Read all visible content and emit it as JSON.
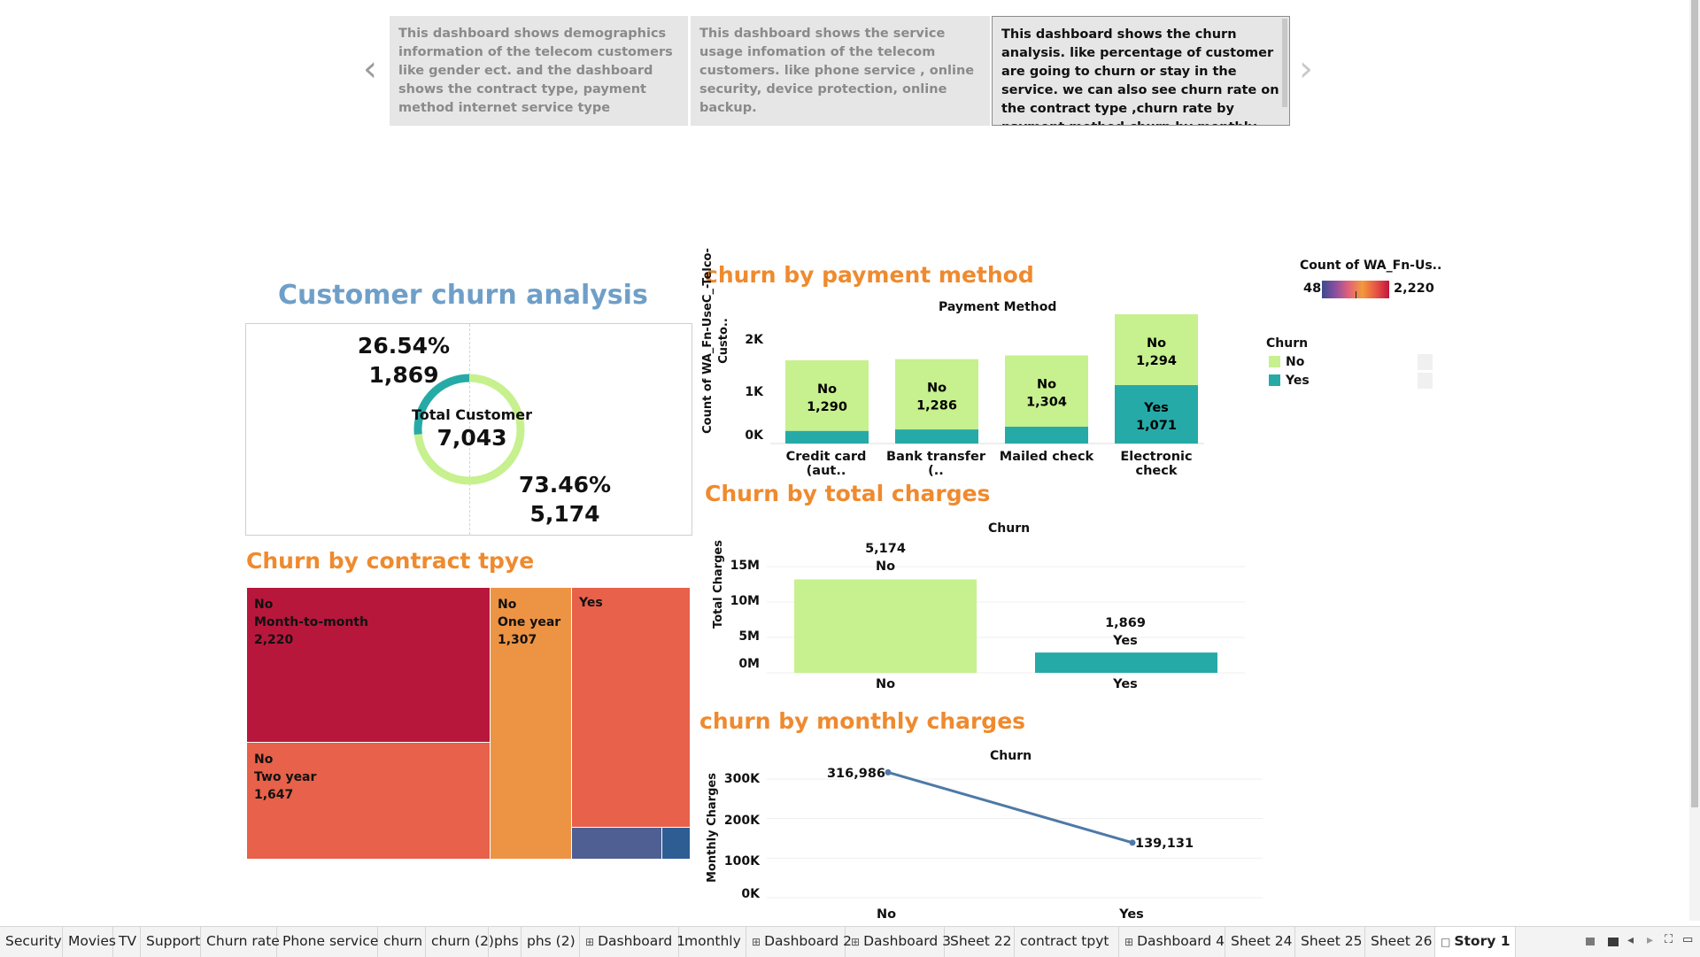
{
  "story": {
    "captions": [
      "This  dashboard shows demographics information of  the telecom customers like gender ect. and the dashboard shows the contract type, payment method internet service type",
      "This dashboard shows the service usage infomation of the telecom customers. like phone service , online security, device protection, online backup.",
      "This dashboard shows the churn analysis. like percentage  of customer are going to churn or stay in the service. we can also see churn rate on  the contract type ,churn rate by payment method,churn by monthly and"
    ]
  },
  "overview": {
    "title": "Customer churn analysis",
    "yes_pct": "26.54%",
    "yes_count": "1,869",
    "center_label": "Total Customer",
    "total": "7,043",
    "no_pct": "73.46%",
    "no_count": "5,174"
  },
  "contract": {
    "title": "Churn by contract tpye",
    "cells": [
      {
        "churn": "No",
        "contract": "Month-to-month",
        "value": "2,220"
      },
      {
        "churn": "No",
        "contract": "One year",
        "value": "1,307"
      },
      {
        "churn": "Yes",
        "contract": "",
        "value": ""
      },
      {
        "churn": "No",
        "contract": "Two year",
        "value": "1,647"
      }
    ]
  },
  "payment": {
    "title": "churn by payment method",
    "header": "Payment Method",
    "ylabel": "Count of WA_Fn-UseC_-Telco-Custo..",
    "ticks": [
      "2K",
      "1K",
      "0K"
    ],
    "categories": [
      "Credit card (aut..",
      "Bank transfer (..",
      "Mailed check",
      "Electronic check"
    ]
  },
  "legend": {
    "color_title": "Count of WA_Fn-Us..",
    "color_min": "48",
    "color_max": "2,220",
    "churn_title": "Churn",
    "items": [
      "No",
      "Yes"
    ]
  },
  "total_charges": {
    "title": "Churn by total charges",
    "header": "Churn",
    "ylabel": "Total Charges",
    "ticks": [
      "15M",
      "10M",
      "5M",
      "0M"
    ],
    "bar_labels": [
      {
        "count": "5,174",
        "churn": "No"
      },
      {
        "count": "1,869",
        "churn": "Yes"
      }
    ],
    "xlabels": [
      "No",
      "Yes"
    ]
  },
  "monthly": {
    "title": "churn  by monthly charges",
    "header": "Churn",
    "ylabel": "Monthly Charges",
    "ticks": [
      "300K",
      "200K",
      "100K",
      "0K"
    ],
    "point_labels": [
      "316,986",
      "139,131"
    ],
    "xlabels": [
      "No",
      "Yes"
    ]
  },
  "colors": {
    "no": "#c7f08e",
    "yes": "#26aaa8",
    "orange_title": "#ef8a2e",
    "blue_title": "#6f9fc8",
    "line": "#4e79a7",
    "tree_crimson": "#b8173c",
    "tree_orange": "#ed9444",
    "tree_coral": "#e8614a",
    "tree_slate": "#4f5f94",
    "tree_navy": "#2d5d92"
  },
  "chart_data": [
    {
      "type": "bar",
      "title": "churn by payment method",
      "xlabel": "Payment Method",
      "ylabel": "Count of WA_Fn-UseC_-Telco-Custo..",
      "categories": [
        "Credit card (aut..",
        "Bank transfer (..",
        "Mailed check",
        "Electronic check"
      ],
      "series": [
        {
          "name": "No",
          "values": [
            1290,
            1286,
            1304,
            1294
          ]
        },
        {
          "name": "Yes",
          "values": [
            232,
            258,
            308,
            1071
          ]
        }
      ],
      "stacked": true,
      "ylim": [
        0,
        2365
      ]
    },
    {
      "type": "bar",
      "title": "Churn by total charges",
      "xlabel": "Churn",
      "ylabel": "Total Charges",
      "categories": [
        "No",
        "Yes"
      ],
      "values": [
        13193241,
        2862927
      ],
      "data_labels": [
        5174,
        1869
      ],
      "ylim": [
        0,
        15000000
      ]
    },
    {
      "type": "line",
      "title": "churn  by monthly charges",
      "xlabel": "Churn",
      "ylabel": "Monthly Charges",
      "categories": [
        "No",
        "Yes"
      ],
      "values": [
        316986,
        139131
      ],
      "ylim": [
        0,
        300000
      ]
    },
    {
      "type": "pie",
      "title": "Customer churn analysis",
      "categories": [
        "No",
        "Yes"
      ],
      "values": [
        5174,
        1869
      ]
    }
  ],
  "tabs": [
    {
      "label": "Security",
      "dash": false
    },
    {
      "label": "Movies",
      "dash": false
    },
    {
      "label": "TV",
      "dash": false
    },
    {
      "label": "Support",
      "dash": false
    },
    {
      "label": "Churn rate",
      "dash": false
    },
    {
      "label": "Phone service",
      "dash": false
    },
    {
      "label": "churn",
      "dash": false
    },
    {
      "label": "churn (2)",
      "dash": false
    },
    {
      "label": "phs",
      "dash": false
    },
    {
      "label": "phs (2)",
      "dash": false
    },
    {
      "label": "Dashboard 1",
      "dash": true
    },
    {
      "label": "monthly",
      "dash": false
    },
    {
      "label": "Dashboard 2",
      "dash": true
    },
    {
      "label": "Dashboard 3",
      "dash": true
    },
    {
      "label": "Sheet 22",
      "dash": false
    },
    {
      "label": "contract tpyt",
      "dash": false
    },
    {
      "label": "Dashboard 4",
      "dash": true
    },
    {
      "label": "Sheet 24",
      "dash": false
    },
    {
      "label": "Sheet 25",
      "dash": false
    },
    {
      "label": "Sheet 26",
      "dash": false
    },
    {
      "label": "Story 1",
      "dash": false,
      "story": true
    }
  ]
}
